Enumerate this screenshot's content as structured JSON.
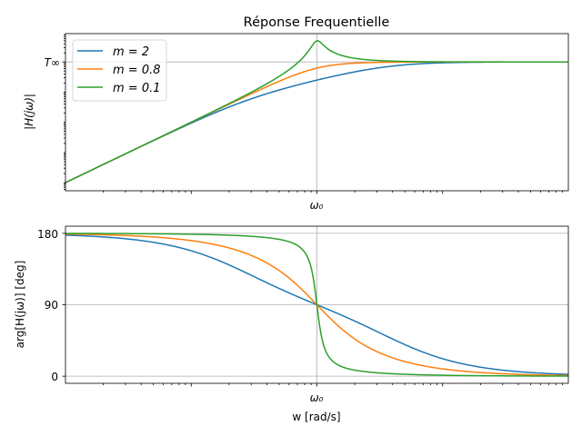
{
  "chart_data": [
    {
      "type": "line",
      "title": "Réponse Frequentielle",
      "xlabel": "",
      "ylabel": "|H(jω)|",
      "xscale": "log",
      "yscale": "log",
      "x_unit": "ω/ω0",
      "xlim": [
        0.01,
        100
      ],
      "ylim": [
        5.37e-05,
        8.7
      ],
      "xticks": [
        {
          "value": 1,
          "label": "ω₀"
        }
      ],
      "yticks": [
        {
          "value": 1,
          "label": "T∞"
        }
      ],
      "grid": "major ticks only",
      "legend": "top-left",
      "model": "H(jx) = T∞·(jx)² / (1 − x² + 2·m·j·x), T∞ = 1",
      "x": [
        0.01,
        0.1,
        1,
        10,
        100
      ],
      "series": [
        {
          "name": "m = 2",
          "m": 2,
          "color": "#1f77b4",
          "values": [
            0.0001,
            0.00937,
            0.25,
            0.937,
            1.0
          ]
        },
        {
          "name": "m = 0.8",
          "m": 0.8,
          "color": "#ff7f0e",
          "values": [
            0.0001,
            0.00997,
            0.625,
            0.997,
            1.0
          ]
        },
        {
          "name": "m = 0.1",
          "m": 0.1,
          "color": "#2ca02c",
          "values": [
            0.0001,
            0.0101,
            5.0,
            1.01,
            1.0
          ]
        }
      ]
    },
    {
      "type": "line",
      "title": "",
      "xlabel": "w [rad/s]",
      "ylabel": "arg[H(jω)] [deg]",
      "xscale": "log",
      "yscale": "linear",
      "xlim": [
        0.01,
        100
      ],
      "ylim": [
        -9,
        189
      ],
      "xticks": [
        {
          "value": 1,
          "label": "ω₀"
        }
      ],
      "yticks": [
        {
          "value": 180,
          "label": "180"
        },
        {
          "value": 90,
          "label": "90"
        },
        {
          "value": 0,
          "label": "0"
        }
      ],
      "grid": "major ticks only",
      "x": [
        0.01,
        0.1,
        1,
        10,
        100
      ],
      "series": [
        {
          "name": "m = 2",
          "m": 2,
          "color": "#1f77b4",
          "values": [
            177.7,
            158.0,
            90,
            22.0,
            2.3
          ]
        },
        {
          "name": "m = 0.8",
          "m": 0.8,
          "color": "#ff7f0e",
          "values": [
            179.1,
            170.8,
            90,
            9.2,
            0.9
          ]
        },
        {
          "name": "m = 0.1",
          "m": 0.1,
          "color": "#2ca02c",
          "values": [
            179.9,
            178.8,
            90,
            1.2,
            0.1
          ]
        }
      ]
    }
  ],
  "legend_labels": [
    "m = 2",
    "m = 0.8",
    "m = 0.1"
  ]
}
